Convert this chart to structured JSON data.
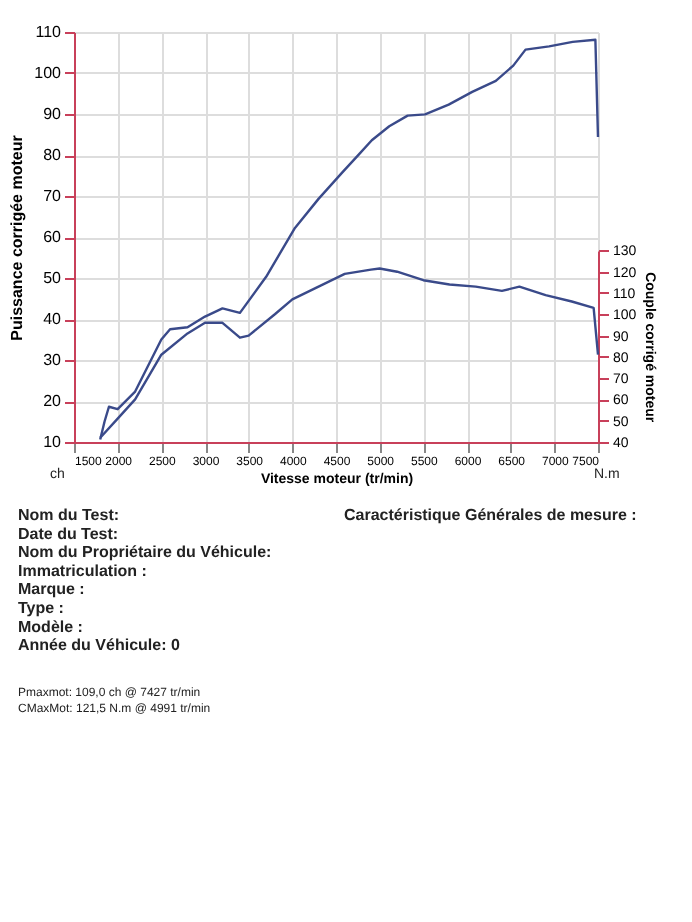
{
  "chart_data": {
    "type": "line",
    "xlabel": "Vitesse moteur (tr/min)",
    "ylabel": "Puissance corrigée moteur",
    "y2label": "Couple corrigé moteur",
    "xlim": [
      1500,
      7500
    ],
    "xticks": [
      1500,
      2000,
      2500,
      3000,
      3500,
      4000,
      4500,
      5000,
      5500,
      6000,
      6500,
      7000,
      7500
    ],
    "ylim": [
      10,
      110
    ],
    "yticks": [
      10,
      20,
      30,
      40,
      50,
      60,
      70,
      80,
      90,
      100,
      110
    ],
    "y2lim": [
      40,
      130
    ],
    "y2ticks": [
      40,
      50,
      60,
      70,
      80,
      90,
      100,
      110,
      120,
      130
    ],
    "grid": true,
    "marker": "none",
    "line_style": "solid",
    "series": [
      {
        "color": "#3a4a8a",
        "x": [
          1800,
          1850,
          1900,
          2000,
          2200,
          2500,
          2600,
          2800,
          3000,
          3200,
          3400,
          3700,
          4030,
          4300,
          4570,
          4760,
          4910,
          5110,
          5320,
          5520,
          5790,
          6060,
          6330,
          6530,
          6670,
          6940,
          7210,
          7470,
          7500
        ],
        "values": [
          10.6,
          15,
          18.6,
          18,
          22.3,
          35,
          37.5,
          38,
          40.6,
          42.6,
          41.5,
          50.3,
          62.2,
          69.3,
          75.7,
          80.1,
          83.6,
          87,
          89.6,
          89.9,
          92.3,
          95.4,
          98.1,
          101.8,
          105.7,
          106.5,
          107.6,
          108.1,
          84.4
        ]
      },
      {
        "color": "#3a4a8a",
        "axis": "y2",
        "x": [
          1800,
          2000,
          2200,
          2500,
          2800,
          3000,
          3200,
          3400,
          3500,
          3800,
          4000,
          4300,
          4600,
          4900,
          5000,
          5200,
          5500,
          5800,
          6100,
          6400,
          6600,
          6900,
          7200,
          7450,
          7500
        ],
        "values": [
          42,
          51,
          60,
          81,
          91,
          96,
          96,
          89,
          90,
          100,
          107,
          113,
          119,
          121,
          121.5,
          120,
          116,
          114,
          113,
          111,
          113,
          109,
          106,
          103,
          81
        ]
      }
    ],
    "annotations": [
      "ch",
      "N.m",
      "Nom du Test:",
      "Date du Test:",
      "Nom du Propriétaire du Véhicule:",
      "Immatriculation :",
      "Marque :",
      "Type :",
      "Modèle :",
      "Année du Véhicule: 0",
      "Caractéristique Générales de mesure :",
      "Pmaxmot: 109,0 ch @ 7427 tr/min",
      "CMaxMot: 121,5 N.m @ 4991 tr/min"
    ]
  }
}
